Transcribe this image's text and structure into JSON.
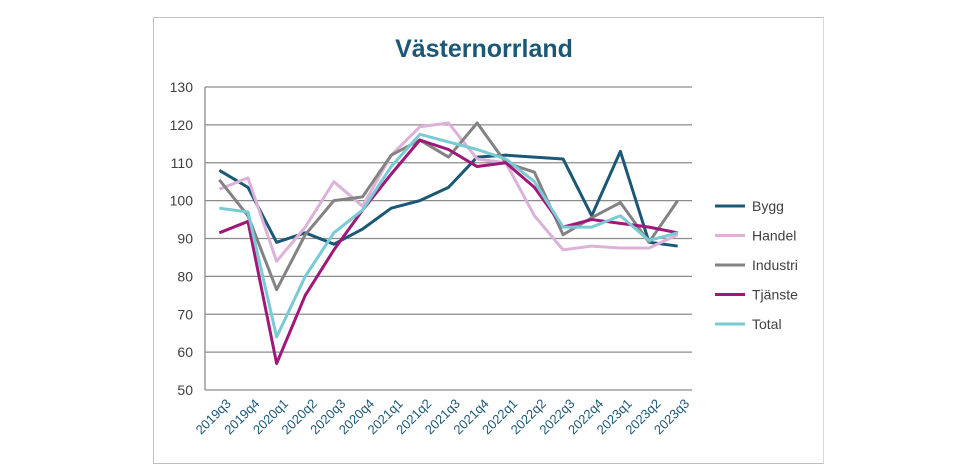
{
  "chart_data": {
    "type": "line",
    "title": "Västernorrland",
    "xlabel": "",
    "ylabel": "",
    "ylim": [
      50,
      130
    ],
    "yticks": [
      50,
      60,
      70,
      80,
      90,
      100,
      110,
      120,
      130
    ],
    "grid": true,
    "legend_position": "right",
    "categories": [
      "2019q3",
      "2019q4",
      "2020q1",
      "2020q2",
      "2020q3",
      "2020q4",
      "2021q1",
      "2021q2",
      "2021q3",
      "2021q4",
      "2022q1",
      "2022q2",
      "2022q3",
      "2022q4",
      "2023q1",
      "2023q2",
      "2023q3"
    ],
    "series": [
      {
        "name": "Bygg",
        "color": "#1b5876",
        "values": [
          108,
          103.5,
          89,
          91.5,
          88.5,
          92.5,
          98,
          100,
          103.5,
          111.5,
          112,
          111.5,
          111,
          96,
          113,
          89,
          88
        ]
      },
      {
        "name": "Handel",
        "color": "#dcb2d8",
        "values": [
          103,
          106,
          84,
          93,
          105,
          98.5,
          112,
          119.5,
          120.5,
          111,
          110,
          96,
          87,
          88,
          87.5,
          87.5,
          91
        ]
      },
      {
        "name": "Industri",
        "color": "#838383",
        "values": [
          105.5,
          96,
          76.5,
          91,
          100,
          101,
          112,
          116,
          111.5,
          120.5,
          110,
          107.5,
          91,
          95.5,
          99.5,
          89,
          100
        ]
      },
      {
        "name": "Tjänste",
        "color": "#a0177a",
        "values": [
          91.5,
          94.5,
          57,
          75,
          87,
          97.5,
          107,
          116,
          113.5,
          109,
          110,
          103.5,
          93,
          95,
          94,
          93,
          91.5
        ]
      },
      {
        "name": "Total",
        "color": "#78cbd2",
        "values": [
          98,
          97,
          64,
          80,
          91.5,
          97.5,
          109,
          117.5,
          115.5,
          113.5,
          111,
          105,
          93,
          93,
          96,
          89.5,
          91.5
        ]
      }
    ]
  }
}
